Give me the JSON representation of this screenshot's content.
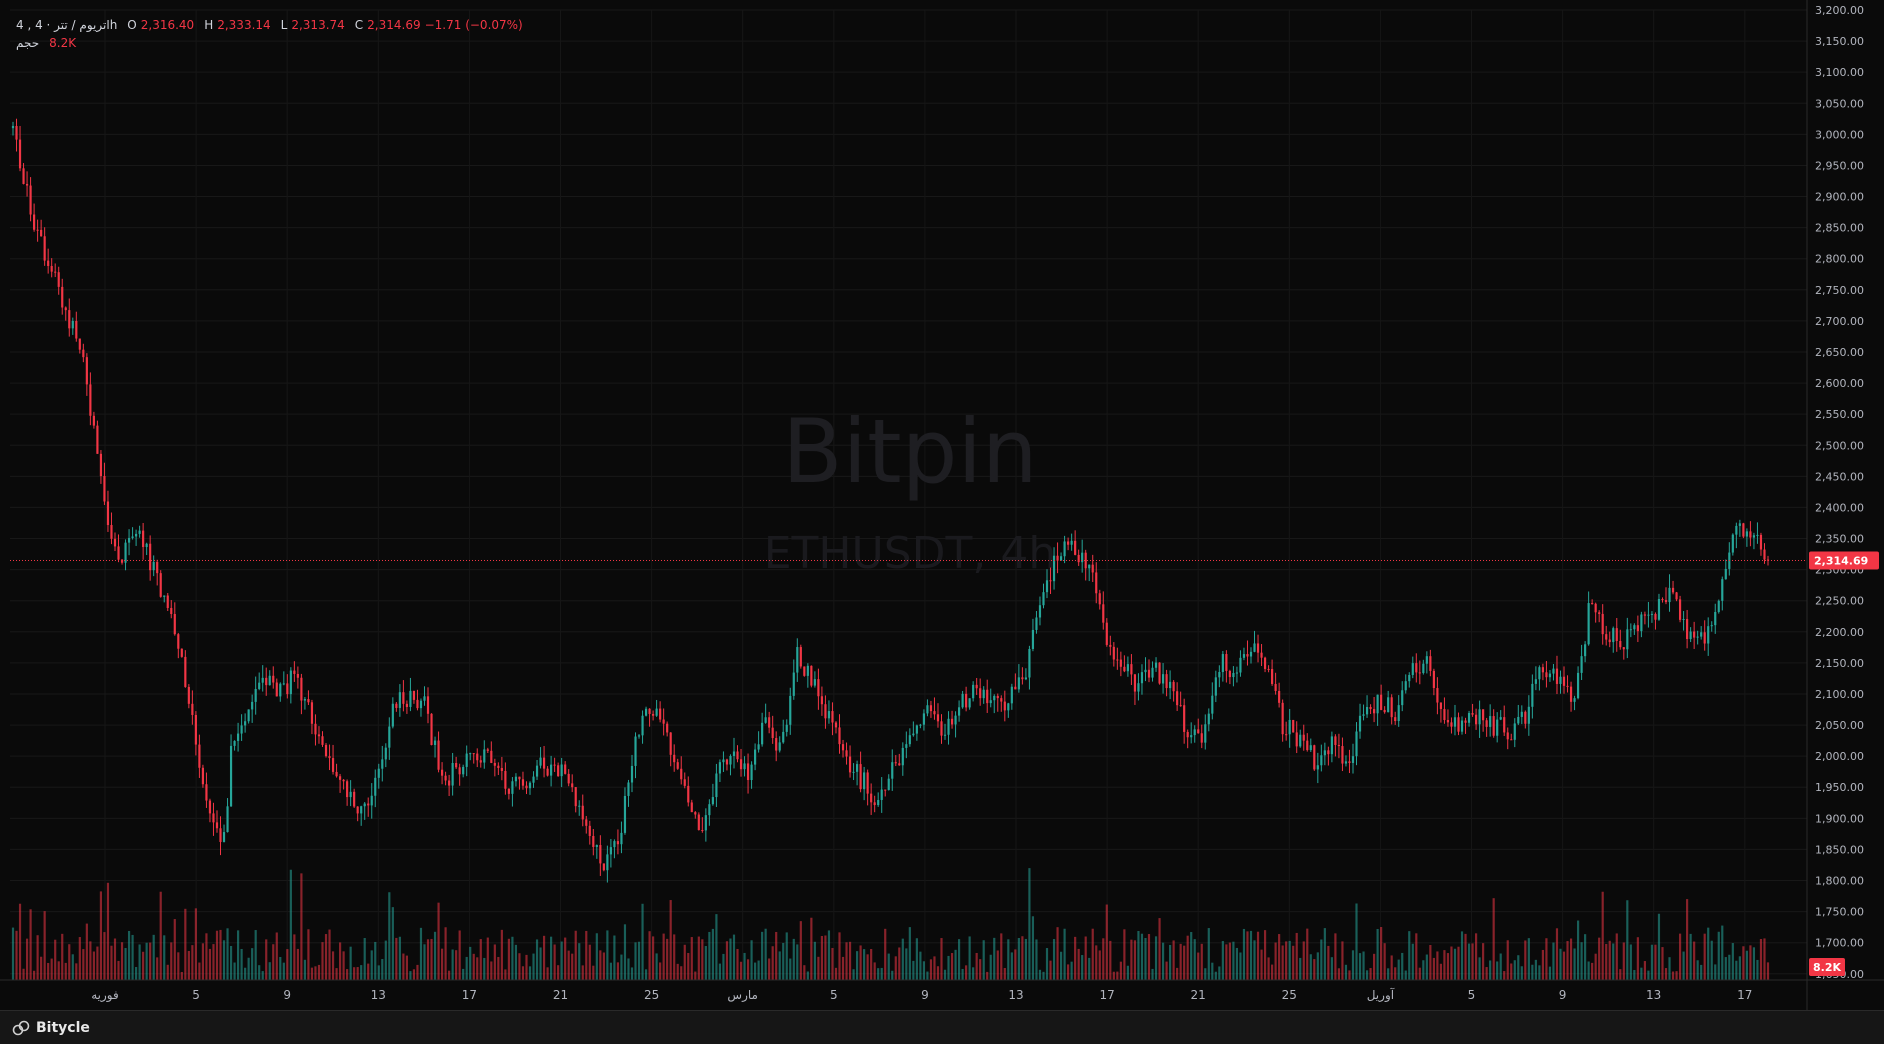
{
  "legend": {
    "symbol": "4 , اتریوم / تتر · 4h",
    "open_label": "O",
    "open": "2,316.40",
    "high_label": "H",
    "high": "2,333.14",
    "low_label": "L",
    "low": "2,313.74",
    "close_label": "C",
    "close": "2,314.69",
    "change": "−1.71 (−0.07%)",
    "volume_label": "حجم",
    "volume": "8.2K"
  },
  "watermark": {
    "brand": "Bitpin",
    "pair": "ETHUSDT, 4h"
  },
  "footer": {
    "brand": "Bitycle",
    "icon": "bitycle-logo-icon"
  },
  "colors": {
    "up": "#26a69a",
    "down": "#f23645",
    "background": "#0a0a0a",
    "grid": "#1a1a1a"
  },
  "chart_data": {
    "type": "candlestick",
    "symbol": "ETHUSDT",
    "interval": "4h",
    "y_axis": {
      "ticks": [
        "3,200.00",
        "3,150.00",
        "3,100.00",
        "3,050.00",
        "3,000.00",
        "2,950.00",
        "2,900.00",
        "2,850.00",
        "2,800.00",
        "2,750.00",
        "2,700.00",
        "2,650.00",
        "2,600.00",
        "2,550.00",
        "2,500.00",
        "2,450.00",
        "2,400.00",
        "2,350.00",
        "2,300.00",
        "2,250.00",
        "2,200.00",
        "2,150.00",
        "2,100.00",
        "2,050.00",
        "2,000.00",
        "1,950.00",
        "1,900.00",
        "1,850.00",
        "1,800.00",
        "1,750.00",
        "1,700.00",
        "1,650.00"
      ],
      "range": [
        1640,
        3200
      ]
    },
    "x_axis": {
      "ticks": [
        "فوریه",
        "5",
        "9",
        "13",
        "17",
        "21",
        "25",
        "مارس",
        "5",
        "9",
        "13",
        "17",
        "21",
        "25",
        "آوریل",
        "5",
        "9",
        "13",
        "17"
      ]
    },
    "last_price_label": "2,314.69",
    "volume_label": "8.2K",
    "price_path": [
      [
        0,
        3010
      ],
      [
        3,
        2840
      ],
      [
        6,
        2740
      ],
      [
        9,
        2620
      ],
      [
        11,
        2420
      ],
      [
        13,
        2300
      ],
      [
        15,
        2370
      ],
      [
        18,
        2280
      ],
      [
        20,
        2210
      ],
      [
        22,
        2080
      ],
      [
        24,
        1920
      ],
      [
        26,
        1850
      ],
      [
        27,
        2010
      ],
      [
        29,
        2080
      ],
      [
        31,
        2130
      ],
      [
        33,
        2100
      ],
      [
        35,
        2130
      ],
      [
        37,
        2050
      ],
      [
        39,
        2000
      ],
      [
        41,
        1950
      ],
      [
        43,
        1920
      ],
      [
        45,
        1960
      ],
      [
        47,
        2080
      ],
      [
        49,
        2100
      ],
      [
        51,
        2080
      ],
      [
        53,
        1960
      ],
      [
        55,
        1980
      ],
      [
        57,
        2010
      ],
      [
        59,
        1990
      ],
      [
        61,
        1950
      ],
      [
        63,
        1960
      ],
      [
        65,
        1980
      ],
      [
        67,
        1990
      ],
      [
        69,
        1960
      ],
      [
        71,
        1880
      ],
      [
        73,
        1820
      ],
      [
        75,
        1860
      ],
      [
        77,
        2040
      ],
      [
        79,
        2080
      ],
      [
        81,
        2020
      ],
      [
        83,
        1940
      ],
      [
        85,
        1880
      ],
      [
        87,
        1970
      ],
      [
        89,
        2010
      ],
      [
        91,
        1960
      ],
      [
        93,
        2060
      ],
      [
        95,
        2010
      ],
      [
        97,
        2170
      ],
      [
        99,
        2110
      ],
      [
        101,
        2060
      ],
      [
        103,
        1990
      ],
      [
        105,
        1960
      ],
      [
        107,
        1930
      ],
      [
        109,
        1980
      ],
      [
        111,
        2040
      ],
      [
        113,
        2070
      ],
      [
        115,
        2040
      ],
      [
        117,
        2080
      ],
      [
        119,
        2110
      ],
      [
        121,
        2080
      ],
      [
        123,
        2090
      ],
      [
        125,
        2130
      ],
      [
        127,
        2240
      ],
      [
        129,
        2320
      ],
      [
        131,
        2340
      ],
      [
        133,
        2310
      ],
      [
        135,
        2200
      ],
      [
        137,
        2150
      ],
      [
        139,
        2110
      ],
      [
        141,
        2140
      ],
      [
        143,
        2110
      ],
      [
        145,
        2050
      ],
      [
        147,
        2030
      ],
      [
        149,
        2150
      ],
      [
        151,
        2140
      ],
      [
        153,
        2180
      ],
      [
        155,
        2140
      ],
      [
        157,
        2050
      ],
      [
        159,
        2030
      ],
      [
        161,
        1990
      ],
      [
        163,
        2020
      ],
      [
        165,
        1990
      ],
      [
        167,
        2070
      ],
      [
        169,
        2090
      ],
      [
        171,
        2070
      ],
      [
        173,
        2140
      ],
      [
        175,
        2150
      ],
      [
        177,
        2040
      ],
      [
        179,
        2050
      ],
      [
        181,
        2060
      ],
      [
        183,
        2050
      ],
      [
        185,
        2040
      ],
      [
        187,
        2070
      ],
      [
        189,
        2140
      ],
      [
        191,
        2120
      ],
      [
        193,
        2080
      ],
      [
        195,
        2250
      ],
      [
        197,
        2200
      ],
      [
        199,
        2180
      ],
      [
        201,
        2210
      ],
      [
        203,
        2230
      ],
      [
        205,
        2260
      ],
      [
        207,
        2200
      ],
      [
        209,
        2190
      ],
      [
        211,
        2260
      ],
      [
        213,
        2380
      ],
      [
        215,
        2350
      ],
      [
        217,
        2315
      ]
    ]
  }
}
